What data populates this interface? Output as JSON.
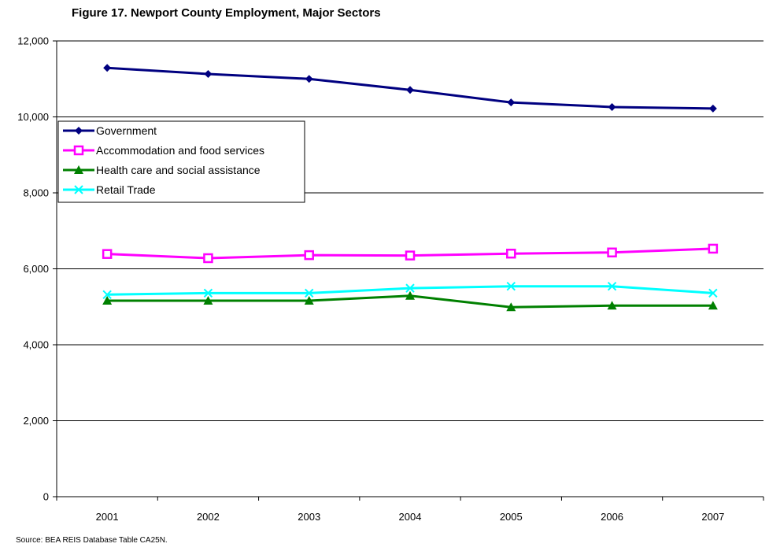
{
  "chart_data": {
    "type": "line",
    "title": "Figure 17.  Newport County Employment, Major Sectors",
    "source": "Source:  BEA REIS Database Table CA25N.",
    "categories": [
      "2001",
      "2002",
      "2003",
      "2004",
      "2005",
      "2006",
      "2007"
    ],
    "ylim": [
      0,
      12000
    ],
    "yticks": [
      "0",
      "2,000",
      "4,000",
      "6,000",
      "8,000",
      "10,000",
      "12,000"
    ],
    "ytick_values": [
      0,
      2000,
      4000,
      6000,
      8000,
      10000,
      12000
    ],
    "grid": true,
    "legend_position": "top-left",
    "series": [
      {
        "name": "Government",
        "color": "#000080",
        "marker": "diamond",
        "values": [
          11290,
          11130,
          11000,
          10710,
          10380,
          10260,
          10220
        ]
      },
      {
        "name": "Accommodation and food services",
        "color": "#FF00FF",
        "marker": "square",
        "values": [
          6390,
          6280,
          6360,
          6350,
          6400,
          6430,
          6530
        ]
      },
      {
        "name": "Health care and social assistance",
        "color": "#008000",
        "marker": "triangle",
        "values": [
          5160,
          5160,
          5160,
          5290,
          4990,
          5030,
          5030
        ]
      },
      {
        "name": "Retail Trade",
        "color": "#00FFFF",
        "marker": "x",
        "values": [
          5320,
          5360,
          5360,
          5490,
          5540,
          5540,
          5360
        ]
      }
    ]
  }
}
